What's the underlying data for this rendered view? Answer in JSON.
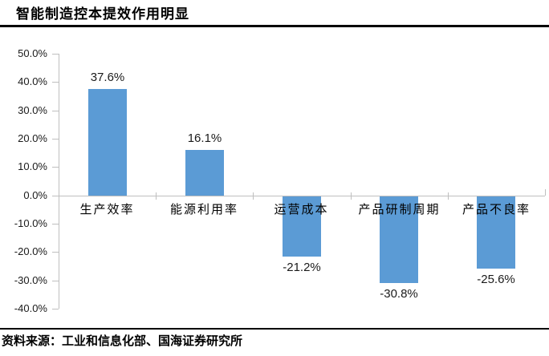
{
  "header": {
    "title": "智能制造控本提效作用明显"
  },
  "chart_data": {
    "type": "bar",
    "title": "智能制造控本提效作用明显",
    "categories": [
      "生产效率",
      "能源利用率",
      "运营成本",
      "产品研制周期",
      "产品不良率"
    ],
    "values": [
      37.6,
      16.1,
      -21.2,
      -30.8,
      -25.6
    ],
    "value_labels": [
      "37.6%",
      "16.1%",
      "-21.2%",
      "-30.8%",
      "-25.6%"
    ],
    "ylim": [
      -40,
      50
    ],
    "ytick_step": 10,
    "ytick_labels": [
      "50.0%",
      "40.0%",
      "30.0%",
      "20.0%",
      "10.0%",
      "0.0%",
      "-10.0%",
      "-20.0%",
      "-30.0%",
      "-40.0%"
    ],
    "xlabel": "",
    "ylabel": "",
    "grid": false,
    "legend_position": "none",
    "bar_color": "#5B9BD5",
    "axis_color": "#BFBFBF",
    "text_color": "#1a1a1a"
  },
  "footer": {
    "source": "资料来源：工业和信息化部、国海证券研究所"
  }
}
